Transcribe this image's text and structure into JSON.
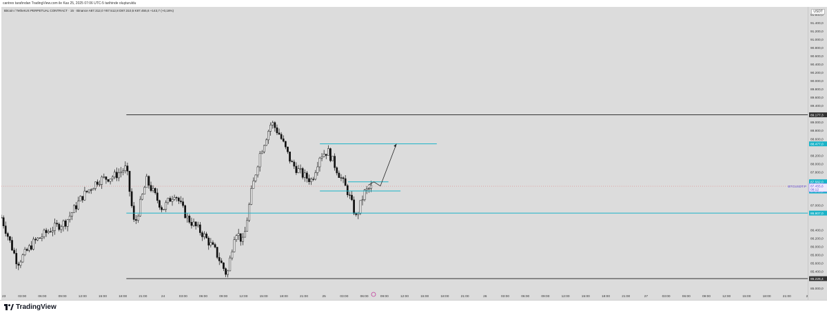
{
  "header": {
    "caption": "cantrex tarafından TradingView.com ile Kas 25, 2025 07:06 UTC-5 tarihinde oluşturuldu"
  },
  "legend": {
    "text": "Bitcoin / TetherUS PERPETUAL CONTRACT · 15 · Binance  A87.312,0  Y87.512,8  D87.310,5  K87.455,6  +143,7 (+0,16%)"
  },
  "currency_label": "USDT",
  "footer": {
    "brand": "TradingView"
  },
  "colors": {
    "background": "#dcdcdc",
    "candle": "#111111",
    "hline_black": "#333333",
    "hline_cyan": "#19b3c8",
    "current_price": "#7b6cf6"
  },
  "chart_data": {
    "type": "candlestick",
    "symbol": "BTCUSDT.P",
    "interval": "15",
    "y_ticks": [
      "91.600,0",
      "91.400,0",
      "91.200,0",
      "91.000,0",
      "90.800,0",
      "90.600,0",
      "90.400,0",
      "90.200,0",
      "90.000,0",
      "89.800,0",
      "89.600,0",
      "89.400,0",
      "89.000,0",
      "88.800,0",
      "88.600,0",
      "88.200,0",
      "88.000,0",
      "87.800,0",
      "87.000,0",
      "86.400,0",
      "86.200,0",
      "86.000,0",
      "85.800,0",
      "85.600,0",
      "85.400,0",
      "85.000,0"
    ],
    "y_tick_values": [
      91600,
      91400,
      91200,
      91000,
      90800,
      90600,
      90400,
      90200,
      90000,
      89800,
      89600,
      89400,
      89000,
      88800,
      88600,
      88200,
      88000,
      87800,
      87000,
      86400,
      86200,
      86000,
      85800,
      85600,
      85400,
      85000
    ],
    "x_ticks": [
      "23",
      "03:00",
      "06:00",
      "09:00",
      "12:00",
      "15:00",
      "18:00",
      "21:00",
      "24",
      "03:00",
      "06:00",
      "09:00",
      "12:00",
      "15:00",
      "18:00",
      "21:00",
      "25",
      "03:00",
      "06:00",
      "09:00",
      "12:00",
      "15:00",
      "18:00",
      "21:00",
      "26",
      "03:00",
      "06:00",
      "09:00",
      "12:00",
      "15:00",
      "18:00",
      "21:00",
      "27",
      "03:00",
      "06:00",
      "09:00",
      "12:00",
      "15:00",
      "18:00",
      "21:00",
      "2"
    ],
    "horizontal_lines": [
      {
        "price": 89177.3,
        "label": "89.177,3",
        "color": "#333333",
        "from_x": 0.155
      },
      {
        "price": 88477,
        "label": "88.477,0",
        "color": "#19b3c8",
        "from_x": 0.395,
        "to_x": 0.54
      },
      {
        "price": 87562,
        "label": "87.562,0",
        "color": "#19b3c8",
        "from_x": 0.43,
        "to_x": 0.48
      },
      {
        "price": 87340,
        "label": "87.340,0",
        "color": "#19b3c8",
        "from_x": 0.395,
        "to_x": 0.495
      },
      {
        "price": 86807,
        "label": "86.807,0",
        "color": "#19b3c8",
        "from_x": 0.155
      },
      {
        "price": 85226.4,
        "label": "85.226,4",
        "color": "#333333",
        "from_x": 0.155
      }
    ],
    "current_price": {
      "symbol_label": "BTCUSDT.P",
      "price": 87455.6,
      "label": "87.455,6",
      "countdown": "08:12"
    },
    "projection": [
      [
        0.455,
        87480
      ],
      [
        0.462,
        87560
      ],
      [
        0.47,
        87460
      ],
      [
        0.49,
        88477
      ]
    ],
    "x_range_days": [
      0,
      4
    ],
    "y_range": [
      84930,
      91780
    ],
    "series_anchor_points": [
      [
        0.0,
        86700
      ],
      [
        0.02,
        85600
      ],
      [
        0.04,
        86100
      ],
      [
        0.06,
        86400
      ],
      [
        0.08,
        86600
      ],
      [
        0.1,
        87200
      ],
      [
        0.12,
        87600
      ],
      [
        0.14,
        87700
      ],
      [
        0.155,
        87900
      ],
      [
        0.165,
        86500
      ],
      [
        0.18,
        87600
      ],
      [
        0.2,
        86900
      ],
      [
        0.215,
        87300
      ],
      [
        0.23,
        86700
      ],
      [
        0.25,
        86300
      ],
      [
        0.265,
        85900
      ],
      [
        0.28,
        85300
      ],
      [
        0.29,
        86400
      ],
      [
        0.3,
        86100
      ],
      [
        0.31,
        87300
      ],
      [
        0.32,
        88200
      ],
      [
        0.335,
        89000
      ],
      [
        0.345,
        88700
      ],
      [
        0.36,
        88000
      ],
      [
        0.375,
        87700
      ],
      [
        0.385,
        87600
      ],
      [
        0.395,
        88200
      ],
      [
        0.405,
        88300
      ],
      [
        0.42,
        87700
      ],
      [
        0.43,
        87300
      ],
      [
        0.44,
        86700
      ],
      [
        0.45,
        87300
      ],
      [
        0.46,
        87455
      ]
    ]
  }
}
